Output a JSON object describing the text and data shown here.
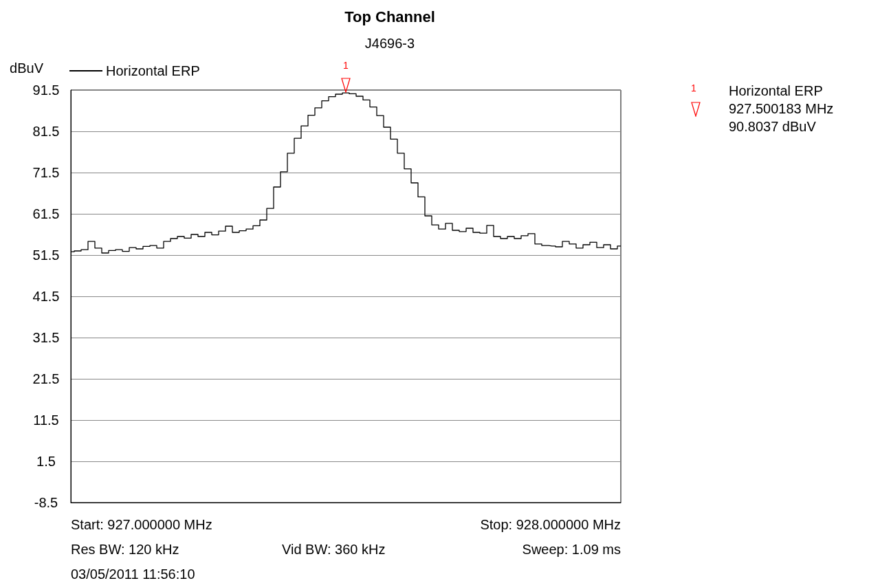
{
  "chart_data": {
    "type": "step",
    "title": "Top Channel",
    "subtitle": "J4696-3",
    "ylabel": "dBuV",
    "categories": [
      null,
      null,
      null,
      null,
      null,
      null,
      null,
      null,
      null,
      null,
      null,
      null,
      null,
      null,
      null,
      null,
      null,
      null,
      null,
      null,
      null,
      null,
      null,
      null,
      null,
      null,
      null,
      null,
      null,
      null,
      null,
      null,
      null,
      null,
      null,
      null,
      null,
      null,
      null,
      null,
      null,
      null,
      null,
      null,
      null,
      null,
      null,
      null,
      null,
      null,
      null,
      null,
      null,
      null,
      null,
      null,
      null,
      null,
      null,
      null,
      null,
      null,
      null,
      null,
      null,
      null,
      null,
      null,
      null,
      null,
      null,
      null,
      null,
      null,
      null,
      null,
      null,
      null,
      null,
      null,
      null
    ],
    "ylim": [
      -8.5,
      91.5
    ],
    "yticks": [
      -8.5,
      1.5,
      11.5,
      21.5,
      31.5,
      41.5,
      51.5,
      61.5,
      71.5,
      81.5,
      91.5
    ],
    "grid": "y",
    "tick_labels": "y",
    "legend": "top left",
    "marker": "none",
    "line_style": "solid",
    "series": [
      {
        "name": "Horizontal ERP",
        "color": "#000000",
        "values": [
          52.3,
          52.5,
          52.8,
          54.8,
          53.2,
          52.0,
          52.6,
          52.8,
          52.4,
          53.3,
          53.0,
          53.6,
          53.8,
          53.2,
          54.8,
          55.5,
          56.0,
          55.6,
          56.5,
          56.0,
          57.0,
          56.4,
          57.3,
          58.5,
          57.0,
          57.4,
          57.8,
          58.6,
          60.0,
          62.8,
          68.0,
          71.7,
          76.2,
          79.8,
          82.8,
          85.4,
          87.2,
          88.9,
          89.9,
          90.5,
          90.8,
          90.6,
          90.0,
          89.1,
          87.4,
          85.3,
          82.5,
          79.6,
          76.2,
          72.4,
          69.0,
          65.6,
          61.0,
          58.8,
          57.8,
          59.2,
          57.5,
          57.2,
          58.0,
          57.0,
          56.8,
          58.7,
          56.0,
          55.5,
          56.0,
          55.5,
          56.2,
          56.7,
          54.2,
          53.8,
          53.7,
          53.5,
          54.8,
          54.2,
          53.2,
          54.0,
          54.6,
          53.3,
          54.0,
          53.0,
          53.7
        ]
      }
    ],
    "annotations": [
      "1",
      "Start: 927.000000 MHz",
      "Stop: 928.000000 MHz",
      "Res BW: 120 kHz",
      "Vid BW: 360 kHz",
      "Sweep: 1.09 ms",
      "03/05/2011 11:56:10",
      "1",
      "Horizontal ERP",
      "927.500183 MHz",
      "90.8037 dBuV"
    ]
  }
}
